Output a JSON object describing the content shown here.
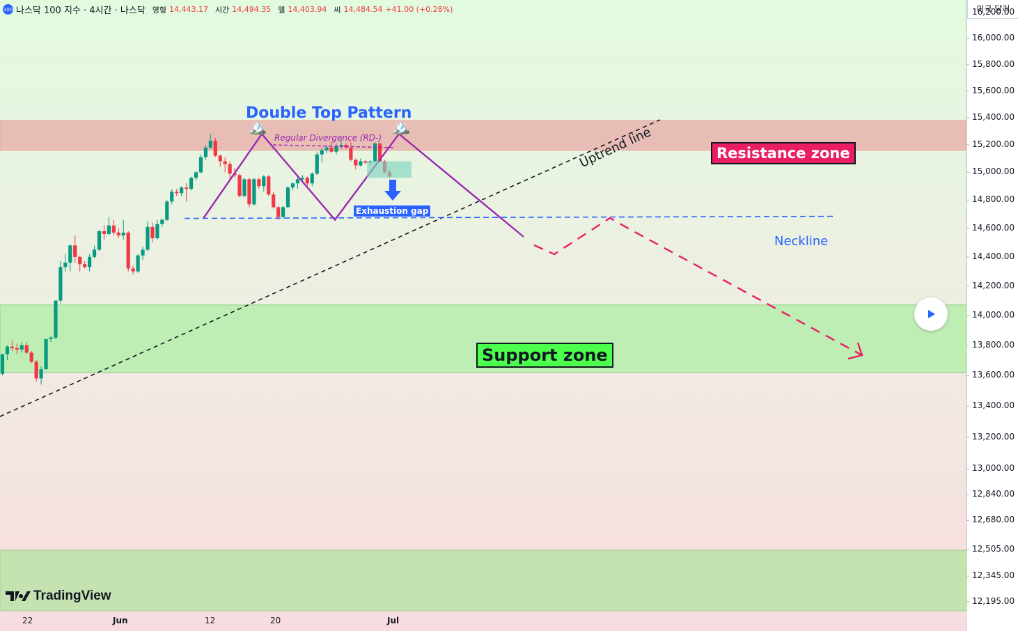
{
  "header": {
    "symbol_badge": "100",
    "title": "나스닥 100 지수 · 4시간 · 나스닥",
    "open_label": "영형",
    "open": "14,443.17",
    "high_label": "시간",
    "high": "14,494.35",
    "low_label": "엘",
    "low": "14,403.94",
    "close_label": "씨",
    "close": "14,484.54",
    "change": "+41.00 (+0.28%)"
  },
  "currency": "미국 달러",
  "logo_text": "TradingView",
  "annotations": {
    "pattern_title": "Double Top Pattern",
    "divergence": "Regular Divergence (RD-)",
    "resistance": "Resistance zone",
    "support": "Support zone",
    "neckline": "Neckline",
    "exhaustion_gap": "Exhaustion gap",
    "uptrend": "Uptrend line"
  },
  "colors": {
    "up": "#089981",
    "down": "#f23645",
    "pattern": "#9c27b0",
    "neckline": "#2962ff",
    "projection": "#e91e63",
    "resistance_fill": "#e8b4ae",
    "support_fill": "#bfeeb4",
    "trend": "#131722"
  },
  "chart_data": {
    "type": "candlestick",
    "y_scale": "log",
    "ylim": [
      12140,
      16300
    ],
    "y_ticks": [
      "16,200.00",
      "16,000.00",
      "15,800.00",
      "15,600.00",
      "15,400.00",
      "15,200.00",
      "15,000.00",
      "14,800.00",
      "14,600.00",
      "14,400.00",
      "14,200.00",
      "14,000.00",
      "13,800.00",
      "13,600.00",
      "13,400.00",
      "13,200.00",
      "13,000.00",
      "12,840.00",
      "12,680.00",
      "12,505.00",
      "12,345.00",
      "12,195.00"
    ],
    "x_ticks": [
      "22",
      "Jun",
      "12",
      "20",
      "Jul"
    ],
    "zones": {
      "resistance": [
        15160,
        15380
      ],
      "support": [
        13620,
        14070
      ],
      "bottom_band": [
        12150,
        12500
      ]
    },
    "neckline": 14670,
    "double_top": {
      "peaks": [
        15280,
        15280
      ],
      "trough": 14660
    },
    "candles": [
      [
        13610,
        13740,
        13600,
        13740
      ],
      [
        13740,
        13800,
        13700,
        13790
      ],
      [
        13790,
        13830,
        13760,
        13780
      ],
      [
        13780,
        13810,
        13740,
        13770
      ],
      [
        13770,
        13820,
        13750,
        13800
      ],
      [
        13800,
        13820,
        13740,
        13750
      ],
      [
        13750,
        13760,
        13680,
        13690
      ],
      [
        13690,
        13700,
        13560,
        13580
      ],
      [
        13580,
        13660,
        13540,
        13640
      ],
      [
        13640,
        13840,
        13640,
        13840
      ],
      [
        13840,
        13860,
        13820,
        13850
      ],
      [
        13850,
        14100,
        13840,
        14100
      ],
      [
        14100,
        14370,
        14080,
        14330
      ],
      [
        14330,
        14420,
        14300,
        14360
      ],
      [
        14360,
        14490,
        14300,
        14480
      ],
      [
        14480,
        14550,
        14360,
        14400
      ],
      [
        14400,
        14410,
        14300,
        14350
      ],
      [
        14350,
        14370,
        14320,
        14330
      ],
      [
        14330,
        14420,
        14300,
        14400
      ],
      [
        14400,
        14480,
        14390,
        14450
      ],
      [
        14450,
        14590,
        14440,
        14580
      ],
      [
        14580,
        14620,
        14520,
        14560
      ],
      [
        14560,
        14680,
        14550,
        14620
      ],
      [
        14620,
        14660,
        14550,
        14570
      ],
      [
        14570,
        14600,
        14530,
        14550
      ],
      [
        14550,
        14660,
        14520,
        14570
      ],
      [
        14570,
        14580,
        14300,
        14320
      ],
      [
        14320,
        14340,
        14280,
        14300
      ],
      [
        14300,
        14420,
        14290,
        14410
      ],
      [
        14410,
        14470,
        14380,
        14450
      ],
      [
        14450,
        14650,
        14440,
        14610
      ],
      [
        14610,
        14640,
        14500,
        14530
      ],
      [
        14530,
        14660,
        14520,
        14630
      ],
      [
        14630,
        14670,
        14610,
        14660
      ],
      [
        14660,
        14800,
        14650,
        14790
      ],
      [
        14790,
        14880,
        14770,
        14860
      ],
      [
        14860,
        14880,
        14830,
        14850
      ],
      [
        14850,
        14900,
        14830,
        14890
      ],
      [
        14890,
        14920,
        14790,
        14880
      ],
      [
        14880,
        14970,
        14870,
        14960
      ],
      [
        14960,
        15010,
        14940,
        15000
      ],
      [
        15000,
        15130,
        14990,
        15110
      ],
      [
        15110,
        15200,
        15090,
        15180
      ],
      [
        15180,
        15280,
        15170,
        15230
      ],
      [
        15230,
        15250,
        15110,
        15120
      ],
      [
        15120,
        15130,
        15040,
        15080
      ],
      [
        15080,
        15110,
        15000,
        15060
      ],
      [
        15060,
        15080,
        14940,
        14990
      ],
      [
        14990,
        15030,
        14960,
        14980
      ],
      [
        14980,
        14990,
        14820,
        14830
      ],
      [
        14830,
        14960,
        14820,
        14950
      ],
      [
        14950,
        14960,
        14750,
        14770
      ],
      [
        14770,
        14960,
        14760,
        14950
      ],
      [
        14950,
        14960,
        14880,
        14900
      ],
      [
        14900,
        14980,
        14860,
        14970
      ],
      [
        14970,
        14980,
        14830,
        14840
      ],
      [
        14840,
        14860,
        14740,
        14750
      ],
      [
        14750,
        14760,
        14660,
        14680
      ],
      [
        14680,
        14760,
        14670,
        14750
      ],
      [
        14750,
        14900,
        14740,
        14890
      ],
      [
        14890,
        14930,
        14870,
        14920
      ],
      [
        14920,
        14970,
        14880,
        14950
      ],
      [
        14950,
        14980,
        14930,
        14960
      ],
      [
        14960,
        14970,
        14900,
        14920
      ],
      [
        14920,
        15000,
        14900,
        14990
      ],
      [
        14990,
        15150,
        14980,
        15130
      ],
      [
        15130,
        15180,
        15070,
        15160
      ],
      [
        15160,
        15200,
        15140,
        15180
      ],
      [
        15180,
        15220,
        15140,
        15150
      ],
      [
        15150,
        15210,
        15130,
        15190
      ],
      [
        15190,
        15250,
        15170,
        15200
      ],
      [
        15200,
        15210,
        15170,
        15180
      ],
      [
        15180,
        15220,
        15080,
        15090
      ],
      [
        15090,
        15100,
        15020,
        15050
      ],
      [
        15050,
        15100,
        15040,
        15080
      ],
      [
        15080,
        15090,
        15060,
        15070
      ],
      [
        15070,
        15090,
        15050,
        15080
      ],
      [
        15080,
        15220,
        15070,
        15210
      ],
      [
        15210,
        15220,
        15070,
        15080
      ],
      [
        15080,
        15090,
        14990,
        15000
      ],
      [
        15000,
        15020,
        14960,
        14970
      ]
    ]
  }
}
